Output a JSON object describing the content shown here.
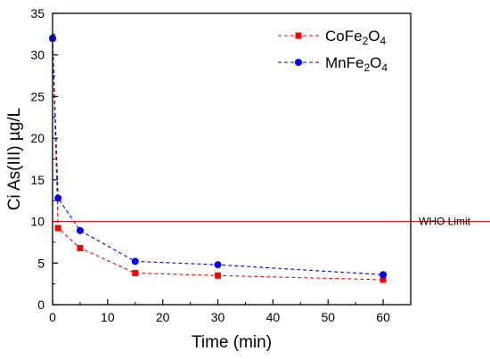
{
  "chart_data": {
    "type": "line",
    "xlabel": "Time (min)",
    "ylabel": "Ci As(III) µg/L",
    "xlim": [
      0,
      65
    ],
    "ylim": [
      0,
      35
    ],
    "x_ticks": [
      0,
      10,
      20,
      30,
      40,
      50,
      60
    ],
    "y_ticks": [
      0,
      5,
      10,
      15,
      20,
      25,
      30,
      35
    ],
    "grid": false,
    "legend_position": "top-right",
    "series": [
      {
        "name": "CoFe2O4",
        "legend": {
          "main": "CoFe",
          "sub1": "2",
          "mid": "O",
          "sub2": "4"
        },
        "color": "#ff0000",
        "marker": "square",
        "line_style": "dashed",
        "x": [
          0,
          1,
          5,
          15,
          30,
          60
        ],
        "values": [
          32,
          9.2,
          6.8,
          3.8,
          3.5,
          3.0
        ]
      },
      {
        "name": "MnFe2O4",
        "legend": {
          "main": "MnFe",
          "sub1": "2",
          "mid": "O",
          "sub2": "4"
        },
        "color": "#0000ff",
        "marker": "circle",
        "line_style": "dashed",
        "x": [
          0,
          1,
          5,
          15,
          30,
          60
        ],
        "values": [
          32,
          12.8,
          8.9,
          5.2,
          4.8,
          3.6
        ]
      }
    ],
    "reference_line": {
      "y": 10,
      "label": "WHO Limit",
      "color": "#cc0000"
    }
  }
}
